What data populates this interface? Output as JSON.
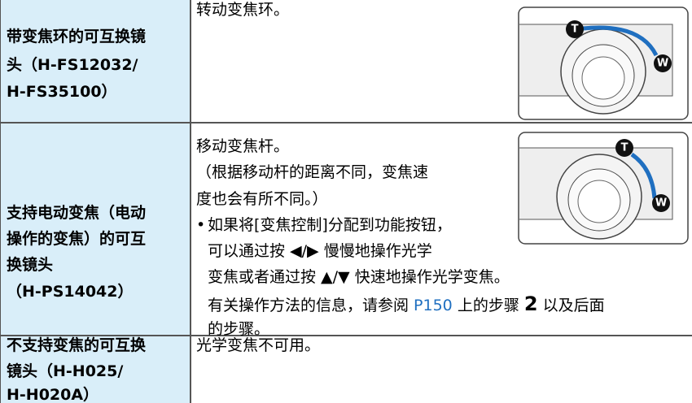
{
  "table": {
    "rows": [
      {
        "label": [
          "带变焦环的可互换镜",
          "头（H-FS12032/",
          "H-FS35100）"
        ],
        "content": [
          "转动变焦环。"
        ],
        "image_marks": [
          "T",
          "W"
        ]
      },
      {
        "label": [
          "支持电动变焦（电动",
          "操作的变焦）的可互",
          "换镜头",
          "（H-PS14042）"
        ],
        "content": [
          "移动变焦杆。",
          "（根据移动杆的距离不同，变焦速",
          "度也会有所不同。）"
        ],
        "bullet": "•",
        "bullet_lines": [
          "如果将[变焦控制]分配到功能按钮，",
          "可以通过按 ◀/▶ 慢慢地操作光学",
          "变焦或者通过按 ▲/▼ 快速地操作光学变焦。"
        ],
        "note": [
          "有关操作方法的信息，请参阅 ",
          "P150",
          " 上的步骤 ",
          "2",
          " 以及后面",
          "的步骤。"
        ],
        "image_marks": [
          "T",
          "W"
        ]
      },
      {
        "label": [
          "不支持变焦的可互换",
          "镜头（H-H025/",
          "H-H020A）"
        ],
        "content": [
          "光学变焦不可用。"
        ]
      }
    ]
  }
}
